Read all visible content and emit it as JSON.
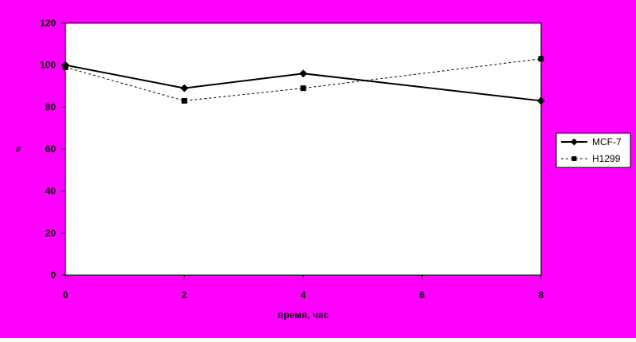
{
  "chart_data": {
    "type": "line",
    "title": "",
    "xlabel": "время, час",
    "ylabel": "%",
    "x": [
      0,
      2,
      4,
      6,
      8
    ],
    "xlim": [
      0,
      8
    ],
    "ylim": [
      0,
      120
    ],
    "xticks": [
      0,
      2,
      4,
      6,
      8
    ],
    "yticks": [
      0,
      20,
      40,
      60,
      80,
      100,
      120
    ],
    "grid": false,
    "legend_position": "right",
    "background_color": "#FF00FF",
    "plot_area_color": "#FFFFFF",
    "series": [
      {
        "name": "MCF-7",
        "x": [
          0,
          2,
          4,
          8
        ],
        "values": [
          100,
          89,
          96,
          83
        ],
        "line_style": "solid",
        "marker": "diamond",
        "color": "#000000"
      },
      {
        "name": "H1299",
        "x": [
          0,
          2,
          4,
          8
        ],
        "values": [
          99,
          83,
          89,
          103
        ],
        "line_style": "dotted",
        "marker": "square",
        "color": "#000000"
      }
    ]
  }
}
